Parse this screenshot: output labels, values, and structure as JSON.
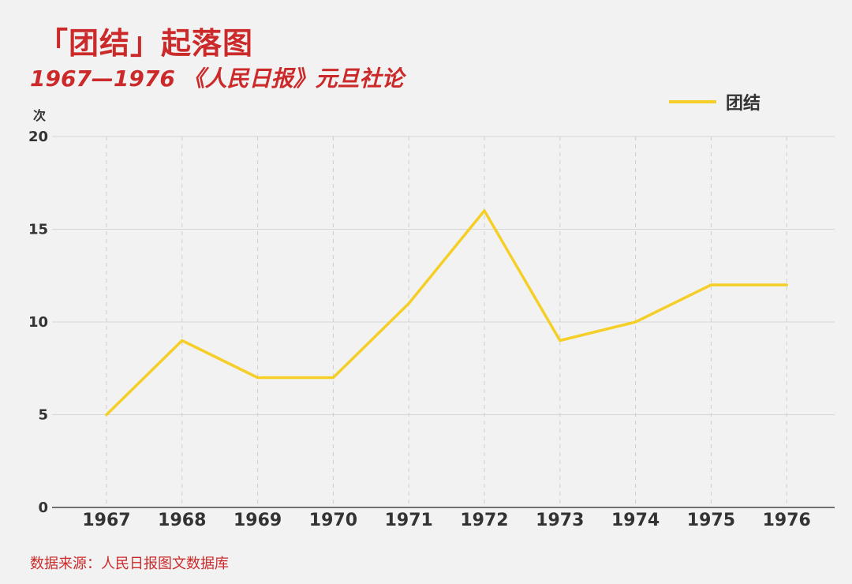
{
  "header": {
    "title": "「团结」起落图",
    "subtitle": "1967—1976 《人民日报》元旦社论"
  },
  "footer": {
    "source": "数据来源：人民日报图文数据库"
  },
  "colors": {
    "line": "#f5cf27",
    "accent": "#cc2a2a"
  },
  "chart_data": {
    "type": "line",
    "title": "「团结」起落图",
    "subtitle": "1967—1976 《人民日报》元旦社论",
    "ylabel": "次",
    "xlabel": "",
    "categories": [
      "1967",
      "1968",
      "1969",
      "1970",
      "1971",
      "1972",
      "1973",
      "1974",
      "1975",
      "1976"
    ],
    "series": [
      {
        "name": "团结",
        "values": [
          5,
          9,
          7,
          7,
          11,
          16,
          9,
          10,
          12,
          12
        ]
      }
    ],
    "ylim": [
      0,
      20
    ],
    "yticks": [
      0,
      5,
      10,
      15,
      20
    ],
    "grid": true,
    "legend_position": "top-right"
  }
}
